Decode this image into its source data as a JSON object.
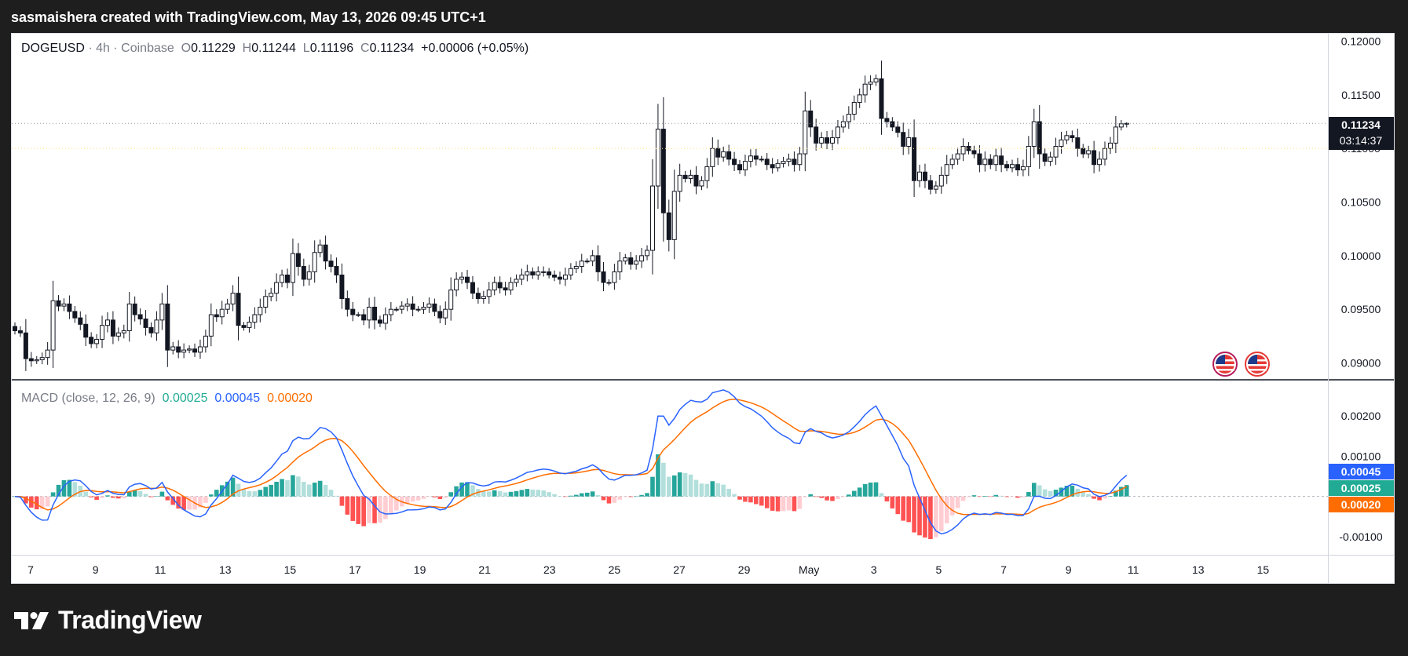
{
  "header": {
    "text": "sasmaishera created with TradingView.com, May 13, 2026 09:45 UTC+1"
  },
  "legend": {
    "symbol": "DOGEUSD",
    "sep1": "·",
    "interval": "4h",
    "sep2": "·",
    "exchange": "Coinbase",
    "o_label": "O",
    "o_value": "0.11229",
    "h_label": "H",
    "h_value": "0.11244",
    "l_label": "L",
    "l_value": "0.11196",
    "c_label": "C",
    "c_value": "0.11234",
    "change": "+0.00006 (+0.05%)"
  },
  "macd_legend": {
    "title": "MACD (close, 12, 26, 9)",
    "hist": "0.00025",
    "macd": "0.00045",
    "signal": "0.00020"
  },
  "price_tag": {
    "price": "0.11234",
    "countdown": "03:14:37"
  },
  "macd_tags": {
    "macd": "0.00045",
    "hist": "0.00025",
    "signal": "0.00020"
  },
  "colors": {
    "up": "#ffffff",
    "down": "#131722",
    "wick": "#131722",
    "macd_line": "#2962ff",
    "signal_line": "#ff6d00",
    "hist_up_strong": "#26a69a",
    "hist_up_weak": "#b2dfdb",
    "hist_down_strong": "#ff5252",
    "hist_down_weak": "#ffcdd2",
    "dotted_level": "#ffe082"
  },
  "logo": {
    "text": "TradingView"
  },
  "chart_data": [
    {
      "type": "candlestick",
      "title": "DOGEUSD · 4h · Coinbase",
      "interval": "4h",
      "ylim": [
        0.0885,
        0.1207
      ],
      "y_ticks": [
        "0.12000",
        "0.11500",
        "0.11000",
        "0.10500",
        "0.10000",
        "0.09500",
        "0.09000"
      ],
      "x_ticks": [
        "7",
        "9",
        "11",
        "13",
        "15",
        "17",
        "19",
        "21",
        "23",
        "25",
        "27",
        "29",
        "May",
        "3",
        "5",
        "7",
        "9",
        "11",
        "13",
        "15"
      ],
      "closes": [
        0.093,
        0.0928,
        0.0904,
        0.0902,
        0.0903,
        0.0905,
        0.0912,
        0.0958,
        0.0953,
        0.0955,
        0.0948,
        0.0942,
        0.0936,
        0.0924,
        0.0918,
        0.0922,
        0.0935,
        0.094,
        0.0925,
        0.0928,
        0.093,
        0.0955,
        0.0945,
        0.0941,
        0.0933,
        0.0928,
        0.094,
        0.0955,
        0.0912,
        0.0915,
        0.091,
        0.0912,
        0.0913,
        0.091,
        0.0915,
        0.0925,
        0.0945,
        0.0943,
        0.095,
        0.0955,
        0.0965,
        0.0935,
        0.0933,
        0.0938,
        0.0945,
        0.0952,
        0.0962,
        0.0965,
        0.0975,
        0.0982,
        0.0975,
        0.1002,
        0.099,
        0.0978,
        0.0985,
        0.1003,
        0.101,
        0.0995,
        0.099,
        0.0982,
        0.096,
        0.095,
        0.0945,
        0.0945,
        0.094,
        0.0952,
        0.094,
        0.0937,
        0.0945,
        0.095,
        0.095,
        0.0953,
        0.0955,
        0.095,
        0.095,
        0.0952,
        0.0955,
        0.0948,
        0.0942,
        0.095,
        0.0968,
        0.0978,
        0.098,
        0.0975,
        0.0965,
        0.096,
        0.0962,
        0.0968,
        0.0975,
        0.097,
        0.0968,
        0.0975,
        0.0978,
        0.0982,
        0.0985,
        0.0982,
        0.0985,
        0.0985,
        0.0982,
        0.098,
        0.0978,
        0.0982,
        0.0988,
        0.099,
        0.0995,
        0.0995,
        0.1,
        0.0985,
        0.0975,
        0.0975,
        0.0985,
        0.0995,
        0.0998,
        0.0992,
        0.0995,
        0.1,
        0.1005,
        0.1065,
        0.1118,
        0.104,
        0.1015,
        0.106,
        0.1075,
        0.1072,
        0.1075,
        0.1065,
        0.107,
        0.1083,
        0.11,
        0.1092,
        0.1097,
        0.109,
        0.1085,
        0.108,
        0.1088,
        0.1093,
        0.109,
        0.109,
        0.1085,
        0.1082,
        0.1086,
        0.1088,
        0.109,
        0.1085,
        0.1095,
        0.1135,
        0.112,
        0.1105,
        0.111,
        0.1105,
        0.111,
        0.112,
        0.1125,
        0.1132,
        0.1143,
        0.115,
        0.116,
        0.1162,
        0.1165,
        0.1128,
        0.1125,
        0.112,
        0.1115,
        0.1102,
        0.111,
        0.107,
        0.1078,
        0.107,
        0.1062,
        0.1065,
        0.1075,
        0.1085,
        0.109,
        0.1095,
        0.1102,
        0.1098,
        0.1095,
        0.1085,
        0.109,
        0.1085,
        0.1093,
        0.1085,
        0.1082,
        0.1085,
        0.108,
        0.1083,
        0.1102,
        0.1125,
        0.1095,
        0.1088,
        0.1092,
        0.1102,
        0.1108,
        0.1112,
        0.111,
        0.11,
        0.1095,
        0.1098,
        0.1085,
        0.109,
        0.11,
        0.1105,
        0.112,
        0.1123,
        0.1123
      ],
      "last": {
        "open": 0.11229,
        "high": 0.11244,
        "low": 0.11196,
        "close": 0.11234,
        "change": "+0.00006 (+0.05%)"
      }
    },
    {
      "type": "line+bar",
      "title": "MACD (close, 12, 26, 9)",
      "ylim": [
        -0.00145,
        0.0029
      ],
      "y_ticks": [
        "0.00200",
        "0.00100",
        "-0.00100"
      ],
      "series": [
        {
          "name": "Histogram",
          "last": 0.00025
        },
        {
          "name": "MACD",
          "last": 0.00045
        },
        {
          "name": "Signal",
          "last": 0.0002
        }
      ]
    }
  ]
}
